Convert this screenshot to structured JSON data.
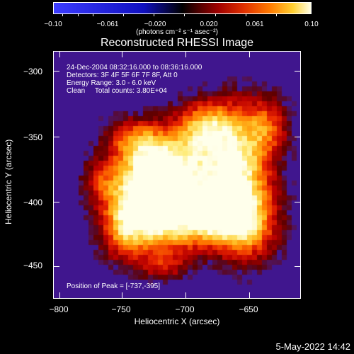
{
  "colorbar": {
    "ticks": [
      "−0.10",
      "−0.061",
      "−0.020",
      "0.020",
      "0.061",
      "0.10"
    ],
    "units": "(photons cm⁻² s⁻¹ asec⁻²)"
  },
  "title": "Reconstructed RHESSI Image",
  "info": {
    "line1": "24-Dec-2004 08:32:16.000 to 08:36:16.000",
    "line2": "Detectors: 3F 4F 5F 6F 7F 8F, Att 0",
    "line3": "Energy Range: 3.0 - 6.0 keV",
    "line4": "Clean     Total counts: 3.80E+04",
    "peak": "Position of Peak = [-737,-395]"
  },
  "axes": {
    "xlabel": "Heliocentric X (arcsec)",
    "ylabel": "Heliocentric Y (arcsec)",
    "xticks": [
      "−800",
      "−750",
      "−700",
      "−650"
    ],
    "yticks": [
      "−300",
      "−350",
      "−400",
      "−450"
    ]
  },
  "timestamp": "5-May-2022 14:42"
}
